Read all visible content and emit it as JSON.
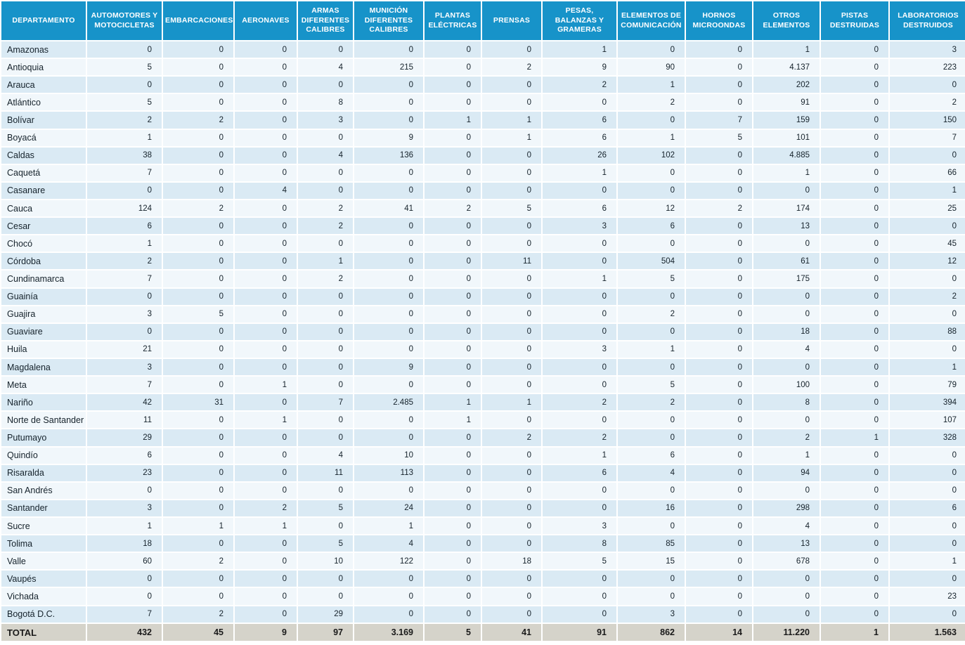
{
  "colors": {
    "header_bg": "#1793C9",
    "header_text": "#ffffff",
    "row_odd_bg": "#DAEAF4",
    "row_even_bg": "#F1F7FB",
    "total_row_bg": "#D5D3CA",
    "gridline": "#ffffff",
    "cell_text": "#15222b"
  },
  "chart_data": {
    "type": "table",
    "title": "",
    "number_format": "thousands separated by period (e.g. 4.137)",
    "columns": [
      "DEPARTAMENTO",
      "AUTOMOTORES Y MOTOCICLETAS",
      "EMBARCACIONES",
      "AERONAVES",
      "ARMAS DIFERENTES CALIBRES",
      "MUNICIÓN DIFERENTES CALIBRES",
      "PLANTAS ELÉCTRICAS",
      "PRENSAS",
      "PESAS, BALANZAS Y GRAMERAS",
      "ELEMENTOS DE COMUNICACIÓN",
      "HORNOS MICROONDAS",
      "OTROS ELEMENTOS",
      "PISTAS DESTRUIDAS",
      "LABORATORIOS DESTRUIDOS"
    ],
    "rows": [
      {
        "department": "Amazonas",
        "values": [
          0,
          0,
          0,
          0,
          0,
          0,
          0,
          1,
          0,
          0,
          1,
          0,
          3
        ]
      },
      {
        "department": "Antioquia",
        "values": [
          5,
          0,
          0,
          4,
          215,
          0,
          2,
          9,
          90,
          0,
          4137,
          0,
          223
        ]
      },
      {
        "department": "Arauca",
        "values": [
          0,
          0,
          0,
          0,
          0,
          0,
          0,
          2,
          1,
          0,
          202,
          0,
          0
        ]
      },
      {
        "department": "Atlántico",
        "values": [
          5,
          0,
          0,
          8,
          0,
          0,
          0,
          0,
          2,
          0,
          91,
          0,
          2
        ]
      },
      {
        "department": "Bolívar",
        "values": [
          2,
          2,
          0,
          3,
          0,
          1,
          1,
          6,
          0,
          7,
          159,
          0,
          150
        ]
      },
      {
        "department": "Boyacá",
        "values": [
          1,
          0,
          0,
          0,
          9,
          0,
          1,
          6,
          1,
          5,
          101,
          0,
          7
        ]
      },
      {
        "department": "Caldas",
        "values": [
          38,
          0,
          0,
          4,
          136,
          0,
          0,
          26,
          102,
          0,
          4885,
          0,
          0
        ]
      },
      {
        "department": "Caquetá",
        "values": [
          7,
          0,
          0,
          0,
          0,
          0,
          0,
          1,
          0,
          0,
          1,
          0,
          66
        ]
      },
      {
        "department": "Casanare",
        "values": [
          0,
          0,
          4,
          0,
          0,
          0,
          0,
          0,
          0,
          0,
          0,
          0,
          1
        ]
      },
      {
        "department": "Cauca",
        "values": [
          124,
          2,
          0,
          2,
          41,
          2,
          5,
          6,
          12,
          2,
          174,
          0,
          25
        ]
      },
      {
        "department": "Cesar",
        "values": [
          6,
          0,
          0,
          2,
          0,
          0,
          0,
          3,
          6,
          0,
          13,
          0,
          0
        ]
      },
      {
        "department": "Chocó",
        "values": [
          1,
          0,
          0,
          0,
          0,
          0,
          0,
          0,
          0,
          0,
          0,
          0,
          45
        ]
      },
      {
        "department": "Córdoba",
        "values": [
          2,
          0,
          0,
          1,
          0,
          0,
          11,
          0,
          504,
          0,
          61,
          0,
          12
        ]
      },
      {
        "department": "Cundinamarca",
        "values": [
          7,
          0,
          0,
          2,
          0,
          0,
          0,
          1,
          5,
          0,
          175,
          0,
          0
        ]
      },
      {
        "department": "Guainía",
        "values": [
          0,
          0,
          0,
          0,
          0,
          0,
          0,
          0,
          0,
          0,
          0,
          0,
          2
        ]
      },
      {
        "department": "Guajira",
        "values": [
          3,
          5,
          0,
          0,
          0,
          0,
          0,
          0,
          2,
          0,
          0,
          0,
          0
        ]
      },
      {
        "department": "Guaviare",
        "values": [
          0,
          0,
          0,
          0,
          0,
          0,
          0,
          0,
          0,
          0,
          18,
          0,
          88
        ]
      },
      {
        "department": "Huila",
        "values": [
          21,
          0,
          0,
          0,
          0,
          0,
          0,
          3,
          1,
          0,
          4,
          0,
          0
        ]
      },
      {
        "department": "Magdalena",
        "values": [
          3,
          0,
          0,
          0,
          9,
          0,
          0,
          0,
          0,
          0,
          0,
          0,
          1
        ]
      },
      {
        "department": "Meta",
        "values": [
          7,
          0,
          1,
          0,
          0,
          0,
          0,
          0,
          5,
          0,
          100,
          0,
          79
        ]
      },
      {
        "department": "Nariño",
        "values": [
          42,
          31,
          0,
          7,
          2485,
          1,
          1,
          2,
          2,
          0,
          8,
          0,
          394
        ]
      },
      {
        "department": "Norte de Santander",
        "values": [
          11,
          0,
          1,
          0,
          0,
          1,
          0,
          0,
          0,
          0,
          0,
          0,
          107
        ]
      },
      {
        "department": "Putumayo",
        "values": [
          29,
          0,
          0,
          0,
          0,
          0,
          2,
          2,
          0,
          0,
          2,
          1,
          328
        ]
      },
      {
        "department": "Quindío",
        "values": [
          6,
          0,
          0,
          4,
          10,
          0,
          0,
          1,
          6,
          0,
          1,
          0,
          0
        ]
      },
      {
        "department": "Risaralda",
        "values": [
          23,
          0,
          0,
          11,
          113,
          0,
          0,
          6,
          4,
          0,
          94,
          0,
          0
        ]
      },
      {
        "department": "San Andrés",
        "values": [
          0,
          0,
          0,
          0,
          0,
          0,
          0,
          0,
          0,
          0,
          0,
          0,
          0
        ]
      },
      {
        "department": "Santander",
        "values": [
          3,
          0,
          2,
          5,
          24,
          0,
          0,
          0,
          16,
          0,
          298,
          0,
          6
        ]
      },
      {
        "department": "Sucre",
        "values": [
          1,
          1,
          1,
          0,
          1,
          0,
          0,
          3,
          0,
          0,
          4,
          0,
          0
        ]
      },
      {
        "department": "Tolima",
        "values": [
          18,
          0,
          0,
          5,
          4,
          0,
          0,
          8,
          85,
          0,
          13,
          0,
          0
        ]
      },
      {
        "department": "Valle",
        "values": [
          60,
          2,
          0,
          10,
          122,
          0,
          18,
          5,
          15,
          0,
          678,
          0,
          1
        ]
      },
      {
        "department": "Vaupés",
        "values": [
          0,
          0,
          0,
          0,
          0,
          0,
          0,
          0,
          0,
          0,
          0,
          0,
          0
        ]
      },
      {
        "department": "Vichada",
        "values": [
          0,
          0,
          0,
          0,
          0,
          0,
          0,
          0,
          0,
          0,
          0,
          0,
          23
        ]
      },
      {
        "department": "Bogotá D.C.",
        "values": [
          7,
          2,
          0,
          29,
          0,
          0,
          0,
          0,
          3,
          0,
          0,
          0,
          0
        ]
      }
    ],
    "total": {
      "label": "TOTAL",
      "values": [
        432,
        45,
        9,
        97,
        3169,
        5,
        41,
        91,
        862,
        14,
        11220,
        1,
        1563
      ]
    }
  }
}
